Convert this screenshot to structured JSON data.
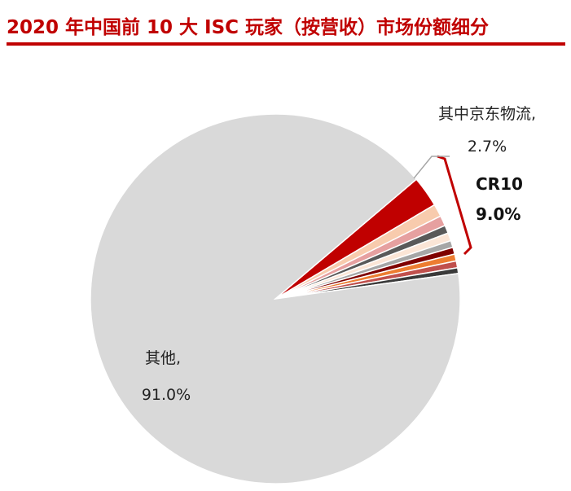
{
  "title": "2020 年中国前 10 大 ISC 玩家（按营收）市场份额细分",
  "colors": {
    "accent": "#c00000",
    "other_slice": "#d9d9d9",
    "bracket": "#c00000",
    "leader_line": "#a6a6a6"
  },
  "chart_data": {
    "type": "pie",
    "title": "2020 年中国前 10 大 ISC 玩家（按营收）市场份额细分",
    "start_angle_deg": -40.3,
    "slices": [
      {
        "label": "其中京东物流",
        "value": 2.7,
        "color": "#c00000"
      },
      {
        "label": "",
        "value": 1.1,
        "color": "#f8cbad"
      },
      {
        "label": "",
        "value": 0.9,
        "color": "#e6a0a0"
      },
      {
        "label": "",
        "value": 0.7,
        "color": "#595959"
      },
      {
        "label": "",
        "value": 0.7,
        "color": "#fbe5d6"
      },
      {
        "label": "",
        "value": 0.6,
        "color": "#a6a6a6"
      },
      {
        "label": "",
        "value": 0.6,
        "color": "#7f0000"
      },
      {
        "label": "",
        "value": 0.6,
        "color": "#ed7d31"
      },
      {
        "label": "",
        "value": 0.6,
        "color": "#c0504d"
      },
      {
        "label": "",
        "value": 0.5,
        "color": "#3a3a3a"
      },
      {
        "label": "其他",
        "value": 91.0,
        "color": "#d9d9d9"
      }
    ],
    "labels": {
      "jd_name": "其中京东物流,",
      "jd_value": "2.7%",
      "other_name": "其他,",
      "other_value": "91.0%"
    },
    "group": {
      "name": "CR10",
      "value": "9.0%"
    }
  }
}
